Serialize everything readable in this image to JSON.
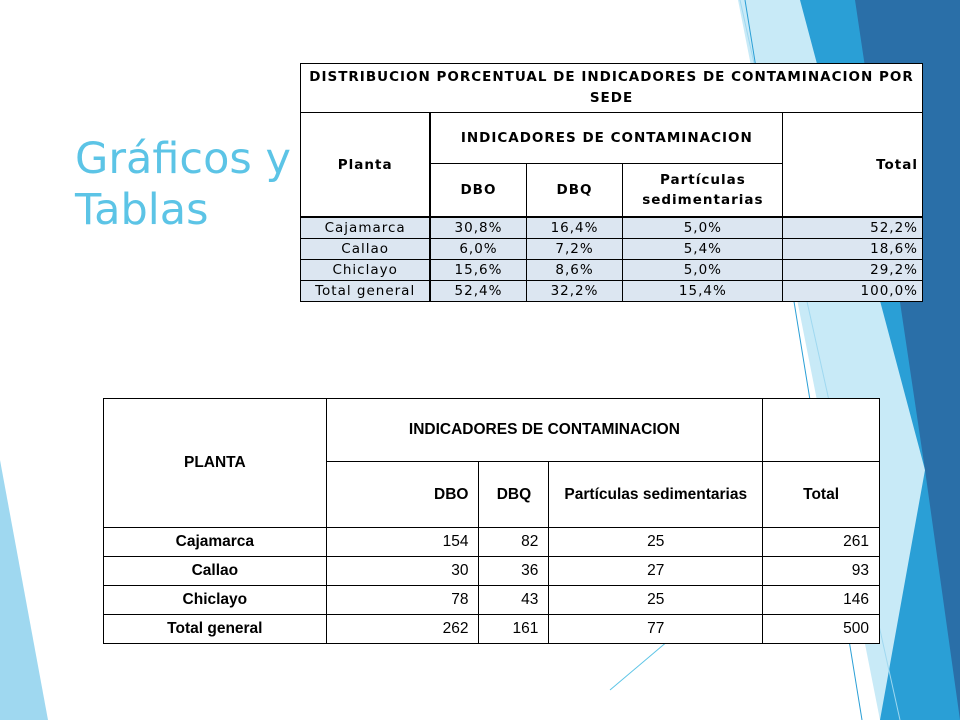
{
  "slide_title": {
    "line1": "Gráficos y",
    "line2": "Tablas"
  },
  "colors": {
    "title": "#5cc4e6",
    "accent_dark": "#2a6fa8",
    "accent_mid": "#2a9fd6",
    "accent_light": "#9fd8f0",
    "cell_fill": "#dce6f1"
  },
  "table_percent": {
    "title": "DISTRIBUCION PORCENTUAL DE INDICADORES DE CONTAMINACION POR SEDE",
    "planta_header": "Planta",
    "group_header": "INDICADORES DE CONTAMINACION",
    "total_header": "Total",
    "columns": [
      "DBO",
      "DBQ",
      "Partículas sedimentarias"
    ],
    "rows": [
      {
        "planta": "Cajamarca",
        "dbo": "30,8%",
        "dbq": "16,4%",
        "particulas": "5,0%",
        "total": "52,2%"
      },
      {
        "planta": "Callao",
        "dbo": "6,0%",
        "dbq": "7,2%",
        "particulas": "5,4%",
        "total": "18,6%"
      },
      {
        "planta": "Chiclayo",
        "dbo": "15,6%",
        "dbq": "8,6%",
        "particulas": "5,0%",
        "total": "29,2%"
      },
      {
        "planta": "Total general",
        "dbo": "52,4%",
        "dbq": "32,2%",
        "particulas": "15,4%",
        "total": "100,0%"
      }
    ]
  },
  "table_counts": {
    "planta_header": "PLANTA",
    "group_header": "INDICADORES DE CONTAMINACION",
    "columns": [
      "DBO",
      "DBQ",
      "Partículas sedimentarias",
      "Total"
    ],
    "rows": [
      {
        "planta": "Cajamarca",
        "dbo": "154",
        "dbq": "82",
        "particulas": "25",
        "total": "261"
      },
      {
        "planta": "Callao",
        "dbo": "30",
        "dbq": "36",
        "particulas": "27",
        "total": "93"
      },
      {
        "planta": "Chiclayo",
        "dbo": "78",
        "dbq": "43",
        "particulas": "25",
        "total": "146"
      },
      {
        "planta": "Total general",
        "dbo": "262",
        "dbq": "161",
        "particulas": "77",
        "total": "500"
      }
    ]
  }
}
